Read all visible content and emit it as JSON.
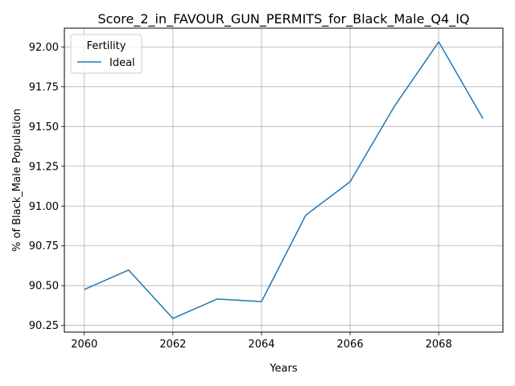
{
  "chart_data": {
    "type": "line",
    "title": "Score_2_in_FAVOUR_GUN_PERMITS_for_Black_Male_Q4_IQ",
    "xlabel": "Years",
    "ylabel": "% of Black_Male Population",
    "x": [
      2060,
      2061,
      2062,
      2063,
      2064,
      2065,
      2066,
      2067,
      2068,
      2069
    ],
    "series": [
      {
        "name": "Ideal",
        "color": "#1f77b4",
        "values": [
          90.476,
          90.598,
          90.294,
          90.416,
          90.4,
          90.943,
          91.153,
          91.627,
          92.032,
          91.549
        ]
      }
    ],
    "xlim": [
      2059.55,
      2069.45
    ],
    "ylim": [
      90.208,
      92.118
    ],
    "xticks": [
      2060,
      2062,
      2064,
      2066,
      2068
    ],
    "xtick_labels": [
      "2060",
      "2062",
      "2064",
      "2066",
      "2068"
    ],
    "yticks": [
      90.25,
      90.5,
      90.75,
      91.0,
      91.25,
      91.5,
      91.75,
      92.0
    ],
    "ytick_labels": [
      "90.25",
      "90.50",
      "90.75",
      "91.00",
      "91.25",
      "91.50",
      "91.75",
      "92.00"
    ],
    "grid": true,
    "legend": {
      "title": "Fertility",
      "placement": "top-left"
    }
  }
}
